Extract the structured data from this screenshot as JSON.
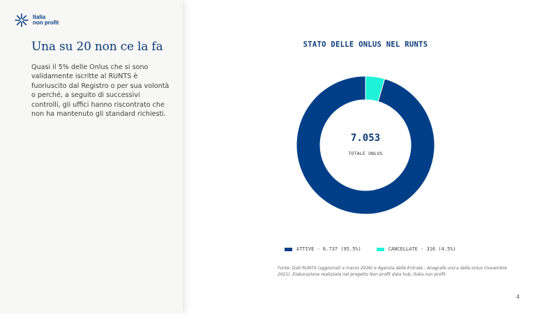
{
  "logo": {
    "line1": "Italia",
    "line2": "non profit",
    "icon": "asterisk-star-icon",
    "color": "#0b3f86"
  },
  "slide": {
    "title": "Una su 20 non ce la fa",
    "body": "Quasi il 5% delle Onlus che si sono validamente iscritte al RUNTS è fuoriuscito dal Registro o per sua volontà o perché, a seguito di successivi controlli, gli uffici hanno riscontrato che non ha mantenuto gli standard richiesti.",
    "page_number": "4"
  },
  "chart_data": {
    "type": "pie",
    "title": "STATO DELLE ONLUS NEL RUNTS",
    "center_value": "7.053",
    "center_label": "TOTALE ONLUS",
    "slices": [
      {
        "name": "ATTIVE",
        "value": 6737,
        "percent": 95.5,
        "color": "#003f88",
        "legend": "ATTIVE - 6.737 (95.5%)"
      },
      {
        "name": "CANCELLATE",
        "value": 316,
        "percent": 4.5,
        "color": "#1ef2d8",
        "legend": "CANCELLATE - 316 (4.5%)"
      }
    ],
    "legend_position": "bottom",
    "source": "Fonte: Dati RUNTS (aggiornati a marzo 2026) e Agenzia delle Entrate - Anagrafe unica delle onlus (novembre 2021). Elaborazione realizzata nel progetto Non profit data hub, Italia non profit"
  }
}
